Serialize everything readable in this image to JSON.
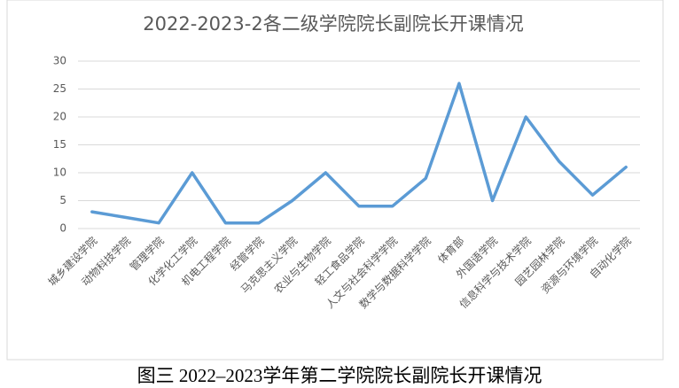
{
  "chart_data": {
    "type": "line",
    "title": "2022-2023-2各二级学院院长副院长开课情况",
    "categories": [
      "城乡建设学院",
      "动物科技学院",
      "管理学院",
      "化学化工学院",
      "机电工程学院",
      "经管学院",
      "马克思主义学院",
      "农业与生物学院",
      "轻工食品学院",
      "人文与社会科学学院",
      "数学与数据科学学院",
      "体育部",
      "外国语学院",
      "信息科学与技术学院",
      "园艺园林学院",
      "资源与环境学院",
      "自动化学院"
    ],
    "values": [
      3,
      2,
      1,
      10,
      1,
      1,
      5,
      10,
      4,
      4,
      9,
      26,
      5,
      20,
      12,
      6,
      11
    ],
    "color": "#5b9bd5",
    "ylim": [
      0,
      30
    ],
    "yticks": [
      0,
      5,
      10,
      15,
      20,
      25,
      30
    ],
    "grid": true
  },
  "caption": "图三 2022–2023学年第二学院院长副院长开课情况"
}
